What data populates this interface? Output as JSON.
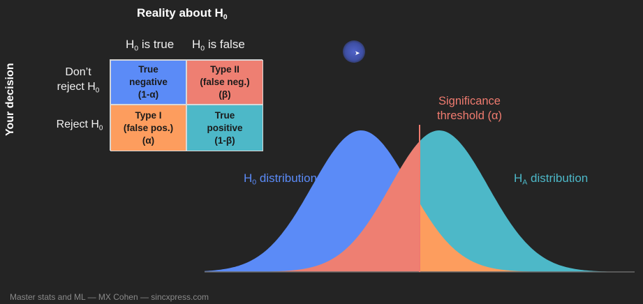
{
  "header": {
    "reality_title": "Reality about H",
    "reality_title_sub": "0",
    "col0": {
      "text": "H",
      "sub": "0",
      "rest": " is true"
    },
    "col1": {
      "text": "H",
      "sub": "0",
      "rest": " is false"
    }
  },
  "side_label": "Your decision",
  "rows": {
    "r0": {
      "line1": "Don’t",
      "line2": "reject H",
      "sub": "0"
    },
    "r1": {
      "text": "Reject H",
      "sub": "0"
    }
  },
  "matrix": {
    "true_negative": "True\nnegative\n(1-α)",
    "type2": "Type II\n(false neg.)\n(β)",
    "type1": "Type I\n(false pos.)\n(α)",
    "true_positive": "True\npositive\n(1-β)"
  },
  "significance_label": "Significance\nthreshold (α)",
  "h0_label": {
    "text": "H",
    "sub": "0",
    "rest": " distribution"
  },
  "ha_label": {
    "text": "H",
    "sub": "A",
    "rest": " distribution"
  },
  "footer": "Master stats and ML — MX Cohen — sincxpress.com",
  "colors": {
    "h0_blue": "#5b8bf7",
    "type2_salmon": "#ee7f72",
    "type1_orange": "#fd9d5e",
    "ha_teal": "#4db8c8",
    "background": "#242424"
  },
  "chart_data": {
    "type": "area",
    "title": "",
    "series": [
      {
        "name": "H0 distribution",
        "mean": 0.0,
        "sd": 1.0
      },
      {
        "name": "HA distribution",
        "mean": 1.6,
        "sd": 1.0
      }
    ],
    "threshold": 1.2,
    "xlim": [
      -3.2,
      5.6
    ]
  }
}
